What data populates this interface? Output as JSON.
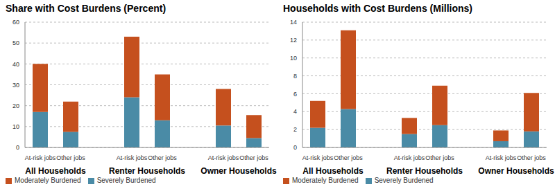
{
  "chart_data": [
    {
      "type": "bar",
      "title": "Share with Cost Burdens (Percent)",
      "categories": [
        "At-risk jobs",
        "Other jobs",
        null,
        "At-risk jobs",
        "Other jobs",
        null,
        "At-risk jobs",
        "Other jobs"
      ],
      "groups": [
        "All Households",
        "Renter Households",
        "Owner Households"
      ],
      "series": [
        {
          "name": "Severely Burdened",
          "color": "#4A8BA6",
          "values": [
            17,
            7.5,
            null,
            24,
            13,
            null,
            10.5,
            4.5
          ]
        },
        {
          "name": "Moderately Burdened",
          "color": "#C5501E",
          "values": [
            23,
            14.5,
            null,
            29,
            22,
            null,
            17.5,
            11
          ]
        }
      ],
      "ylim": [
        0,
        60
      ],
      "yticks": [
        0,
        10,
        20,
        30,
        40,
        50,
        60
      ],
      "grid": true,
      "stacked": true,
      "legend": "bottom-left"
    },
    {
      "type": "bar",
      "title": "Households with Cost Burdens (Millions)",
      "categories": [
        "At-risk jobs",
        "Other jobs",
        null,
        "At-risk jobs",
        "Other jobs",
        null,
        "At-risk jobs",
        "Other jobs"
      ],
      "groups": [
        "All Households",
        "Renter Households",
        "Owner Households"
      ],
      "series": [
        {
          "name": "Severely Burdened",
          "color": "#4A8BA6",
          "values": [
            2.2,
            4.3,
            null,
            1.5,
            2.5,
            null,
            0.7,
            1.8
          ]
        },
        {
          "name": "Moderately Burdened",
          "color": "#C5501E",
          "values": [
            3.0,
            8.8,
            null,
            1.8,
            4.4,
            null,
            1.2,
            4.3
          ]
        }
      ],
      "ylim": [
        0,
        14
      ],
      "yticks": [
        0,
        2,
        4,
        6,
        8,
        10,
        12,
        14
      ],
      "grid": true,
      "stacked": true,
      "legend": "bottom-left"
    }
  ]
}
